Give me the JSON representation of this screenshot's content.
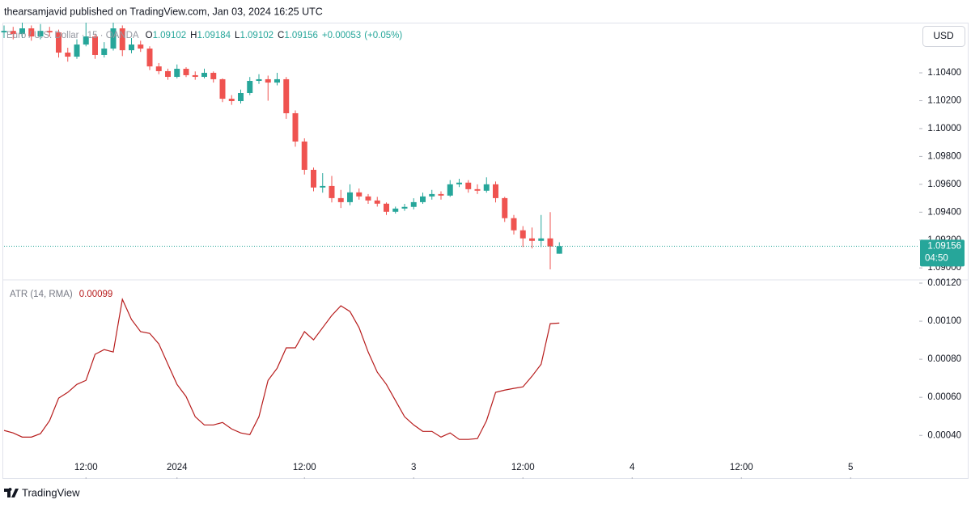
{
  "header": {
    "publisher": "thearsamjavid published on TradingView.com, Jan 03, 2024 16:25 UTC"
  },
  "currency_button": "USD",
  "footer": {
    "brand": "TradingView"
  },
  "chart_data": [
    {
      "type": "candlestick",
      "legend": {
        "symbol": "Euro / U.S. Dollar · 15 · OANDA",
        "ohlc_labels": [
          "O",
          "H",
          "L",
          "C"
        ],
        "change": {
          "value": 0.00053,
          "label": "+0.00053"
        },
        "change_pct": {
          "value": 0.05,
          "label": "(+0.05%)"
        }
      },
      "countdown": "04:50",
      "up_color": "#26a69a",
      "down_color": "#ef5350",
      "xlim": [
        3,
        103
      ],
      "ylim": [
        1.0892,
        1.1076
      ],
      "yticks": [
        {
          "value": 1.09,
          "label": "1.09000"
        },
        {
          "value": 1.092,
          "label": "1.09200"
        },
        {
          "value": 1.094,
          "label": "1.09400"
        },
        {
          "value": 1.096,
          "label": "1.09600"
        },
        {
          "value": 1.098,
          "label": "1.09800"
        },
        {
          "value": 1.1,
          "label": "1.10000"
        },
        {
          "value": 1.102,
          "label": "1.10200"
        },
        {
          "value": 1.104,
          "label": "1.10400"
        }
      ],
      "x": [
        3,
        4,
        5,
        6,
        7,
        8,
        9,
        10,
        11,
        12,
        13,
        14,
        15,
        16,
        17,
        18,
        19,
        20,
        21,
        22,
        23,
        24,
        25,
        26,
        27,
        28,
        29,
        30,
        31,
        32,
        33,
        34,
        35,
        36,
        37,
        38,
        39,
        40,
        41,
        42,
        43,
        44,
        45,
        46,
        47,
        48,
        49,
        50,
        51,
        52,
        53,
        54,
        55,
        56,
        57,
        58,
        59,
        60,
        61,
        62,
        63,
        64
      ],
      "open": [
        1.1069,
        1.10701,
        1.10678,
        1.10719,
        1.10661,
        1.10701,
        1.1069,
        1.10545,
        1.10516,
        1.10603,
        1.10661,
        1.10528,
        1.10574,
        1.10719,
        1.10562,
        1.10603,
        1.10574,
        1.10446,
        1.10412,
        1.10371,
        1.10429,
        1.10383,
        1.10371,
        1.104,
        1.10354,
        1.10214,
        1.10197,
        1.10255,
        1.10342,
        1.10354,
        1.1033,
        1.10354,
        1.1011,
        1.09907,
        1.09704,
        1.09577,
        1.09588,
        1.09501,
        1.09472,
        1.09542,
        1.09513,
        1.09484,
        1.09461,
        1.09403,
        1.09426,
        1.09438,
        1.09472,
        1.09513,
        1.0953,
        1.09519,
        1.096,
        1.09612,
        1.09565,
        1.09554,
        1.096,
        1.09501,
        1.09357,
        1.0927,
        1.09212,
        1.09194,
        1.09212,
        1.09102
      ],
      "high": [
        1.1074,
        1.1073,
        1.1076,
        1.1074,
        1.1075,
        1.1073,
        1.1071,
        1.1058,
        1.1064,
        1.1076,
        1.1068,
        1.1062,
        1.1076,
        1.1074,
        1.1065,
        1.1063,
        1.1059,
        1.1047,
        1.1043,
        1.1046,
        1.1044,
        1.1041,
        1.1043,
        1.1041,
        1.1036,
        1.1024,
        1.1028,
        1.1037,
        1.1039,
        1.1038,
        1.104,
        1.1037,
        1.1013,
        1.0993,
        1.0972,
        1.0968,
        1.0966,
        1.0956,
        1.096,
        1.0957,
        1.0953,
        1.0951,
        1.0947,
        1.0944,
        1.0946,
        1.095,
        1.0954,
        1.0956,
        1.0955,
        1.0963,
        1.0964,
        1.0963,
        1.096,
        1.0965,
        1.0962,
        1.0951,
        1.0938,
        1.093,
        1.0929,
        1.0938,
        1.094,
        1.09184
      ],
      "low": [
        1.1065,
        1.1064,
        1.1065,
        1.1063,
        1.1064,
        1.1066,
        1.1051,
        1.1048,
        1.105,
        1.1059,
        1.105,
        1.1051,
        1.1056,
        1.1052,
        1.1054,
        1.1055,
        1.1042,
        1.1039,
        1.1035,
        1.1036,
        1.1037,
        1.1035,
        1.1036,
        1.1033,
        1.1019,
        1.1017,
        1.1018,
        1.1024,
        1.1032,
        1.102,
        1.1031,
        1.1007,
        1.0987,
        1.0967,
        1.0955,
        1.0954,
        1.0947,
        1.0943,
        1.0945,
        1.0949,
        1.0946,
        1.0944,
        1.0938,
        1.0939,
        1.0941,
        1.0942,
        1.0946,
        1.0949,
        1.0949,
        1.0951,
        1.0958,
        1.0954,
        1.0953,
        1.0954,
        1.0947,
        1.0933,
        1.0924,
        1.0915,
        1.0914,
        1.0915,
        1.0899,
        1.09102
      ],
      "close": [
        1.10701,
        1.10678,
        1.10719,
        1.10661,
        1.10701,
        1.1069,
        1.10545,
        1.10516,
        1.10603,
        1.10661,
        1.10528,
        1.10574,
        1.10719,
        1.10562,
        1.10603,
        1.10574,
        1.10446,
        1.10412,
        1.10371,
        1.10429,
        1.10383,
        1.10371,
        1.104,
        1.10354,
        1.10214,
        1.10197,
        1.10255,
        1.10342,
        1.10354,
        1.1033,
        1.10354,
        1.1011,
        1.09907,
        1.09704,
        1.09577,
        1.09588,
        1.09501,
        1.09472,
        1.09542,
        1.09513,
        1.09484,
        1.09461,
        1.09403,
        1.09426,
        1.09438,
        1.09472,
        1.09513,
        1.0953,
        1.09519,
        1.096,
        1.09612,
        1.09565,
        1.09554,
        1.096,
        1.09501,
        1.09357,
        1.0927,
        1.09212,
        1.09194,
        1.09212,
        1.09154,
        1.09156
      ]
    },
    {
      "type": "line",
      "xlim": [
        3,
        103
      ],
      "xticks": [
        {
          "value": 12,
          "label": "12:00"
        },
        {
          "value": 22,
          "label": "2024"
        },
        {
          "value": 36,
          "label": "12:00"
        },
        {
          "value": 48,
          "label": "3"
        },
        {
          "value": 60,
          "label": "12:00"
        },
        {
          "value": 72,
          "label": "4"
        },
        {
          "value": 84,
          "label": "12:00"
        },
        {
          "value": 96,
          "label": "5"
        }
      ],
      "ylim": [
        0.00018,
        0.0012
      ],
      "yticks": [
        {
          "value": 0.0004,
          "label": "0.00040"
        },
        {
          "value": 0.0006,
          "label": "0.00060"
        },
        {
          "value": 0.0008,
          "label": "0.00080"
        },
        {
          "value": 0.001,
          "label": "0.00100"
        },
        {
          "value": 0.0012,
          "label": "0.00120"
        }
      ],
      "x": [
        3,
        4,
        5,
        6,
        7,
        8,
        9,
        10,
        11,
        12,
        13,
        14,
        15,
        16,
        17,
        18,
        19,
        20,
        21,
        22,
        23,
        24,
        25,
        26,
        27,
        28,
        29,
        30,
        31,
        32,
        33,
        34,
        35,
        36,
        37,
        38,
        39,
        40,
        41,
        42,
        43,
        44,
        45,
        46,
        47,
        48,
        49,
        50,
        51,
        52,
        53,
        54,
        55,
        56,
        57,
        58,
        59,
        60,
        61,
        62,
        63,
        64
      ],
      "series": [
        {
          "name": "ATR (14, RMA)",
          "color": "#b71c1c",
          "values": [
            0.000426,
            0.000413,
            0.000391,
            0.000391,
            0.000409,
            0.000477,
            0.000596,
            0.000626,
            0.000668,
            0.000689,
            0.000826,
            0.000851,
            0.000838,
            0.001115,
            0.001009,
            0.000945,
            0.000936,
            0.000881,
            0.000774,
            0.000668,
            0.000604,
            0.000498,
            0.000455,
            0.000455,
            0.000468,
            0.000434,
            0.000413,
            0.000404,
            0.000498,
            0.000689,
            0.000753,
            0.00086,
            0.00086,
            0.000945,
            0.000902,
            0.000966,
            0.00103,
            0.001081,
            0.001051,
            0.000966,
            0.000838,
            0.000732,
            0.000668,
            0.000583,
            0.000498,
            0.000455,
            0.000421,
            0.000421,
            0.000391,
            0.000413,
            0.000379,
            0.000379,
            0.000383,
            0.000477,
            0.000626,
            0.000638,
            0.000647,
            0.000655,
            0.000711,
            0.000774,
            0.000987,
            0.00099
          ]
        }
      ]
    }
  ]
}
